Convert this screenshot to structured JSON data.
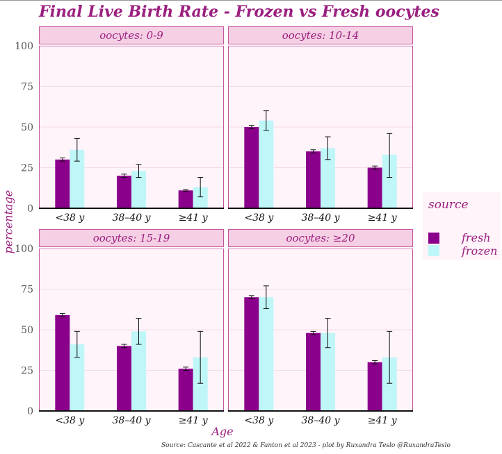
{
  "chart_data": {
    "type": "bar",
    "title": "Final Live Birth Rate - Frozen vs Fresh oocytes",
    "xlabel": "Age",
    "ylabel": "percentage",
    "ylim": [
      0,
      100
    ],
    "yticks": [
      0,
      25,
      50,
      75,
      100
    ],
    "categories": [
      "<38 y",
      "38–40 y",
      "≥41 y"
    ],
    "legend": {
      "title": "source",
      "position": "right",
      "items": [
        "fresh",
        "frozen"
      ]
    },
    "colors": {
      "fresh": "#8b008b",
      "frozen": "#bff6f8"
    },
    "caption": "Source: Cascante et al 2022 & Fanton et al 2023 - plot by Ruxandra Teslo @RuxandraTeslo",
    "panels": [
      {
        "label": "oocytes: 0-9",
        "series": [
          {
            "name": "fresh",
            "values": [
              30,
              20,
              11
            ],
            "err_low": [
              29,
              19,
              10.5
            ],
            "err_high": [
              31,
              21,
              11.5
            ]
          },
          {
            "name": "frozen",
            "values": [
              36,
              23,
              13
            ],
            "err_low": [
              29,
              19,
              7
            ],
            "err_high": [
              43,
              27,
              19
            ]
          }
        ]
      },
      {
        "label": "oocytes: 10-14",
        "series": [
          {
            "name": "fresh",
            "values": [
              50,
              35,
              25
            ],
            "err_low": [
              49,
              34,
              24
            ],
            "err_high": [
              51,
              36,
              26
            ]
          },
          {
            "name": "frozen",
            "values": [
              54,
              37,
              33
            ],
            "err_low": [
              48,
              30,
              19
            ],
            "err_high": [
              60,
              44,
              46
            ]
          }
        ]
      },
      {
        "label": "oocytes: 15-19",
        "series": [
          {
            "name": "fresh",
            "values": [
              59,
              40,
              26
            ],
            "err_low": [
              58,
              39,
              25
            ],
            "err_high": [
              60,
              41,
              27
            ]
          },
          {
            "name": "frozen",
            "values": [
              41,
              49,
              33
            ],
            "err_low": [
              33,
              41,
              17
            ],
            "err_high": [
              49,
              57,
              49
            ]
          }
        ]
      },
      {
        "label": "oocytes: ≥20",
        "series": [
          {
            "name": "fresh",
            "values": [
              70,
              48,
              30
            ],
            "err_low": [
              69,
              47,
              29
            ],
            "err_high": [
              71,
              49,
              31
            ]
          },
          {
            "name": "frozen",
            "values": [
              70,
              48,
              33
            ],
            "err_low": [
              63,
              39,
              17
            ],
            "err_high": [
              77,
              57,
              49
            ]
          }
        ]
      }
    ]
  }
}
